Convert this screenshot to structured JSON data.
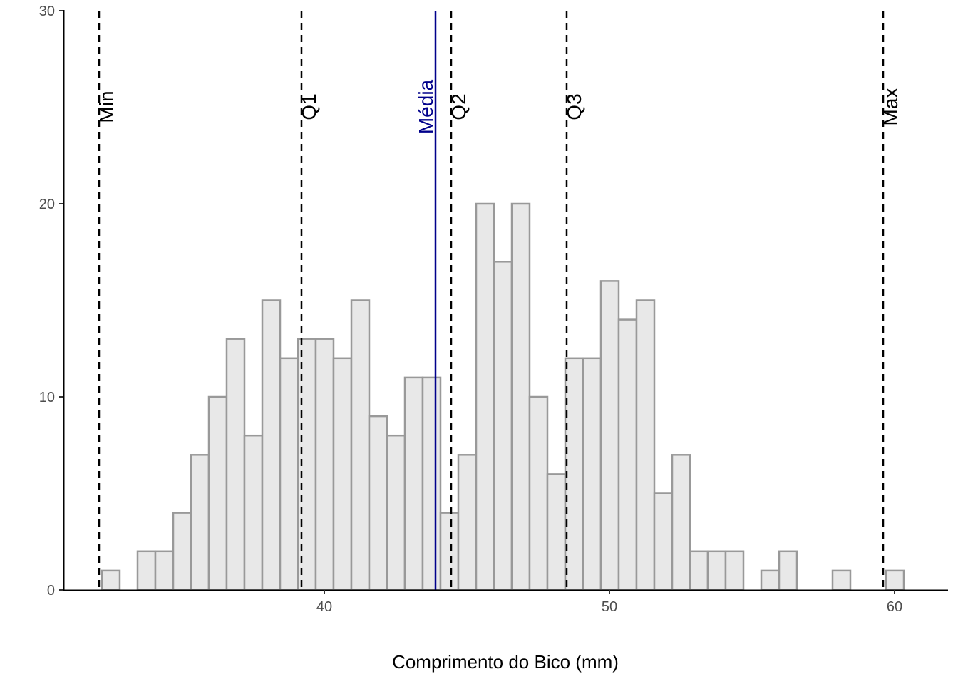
{
  "chart_data": {
    "type": "bar",
    "subtype": "histogram",
    "title": "",
    "xlabel": "Comprimento do Bico (mm)",
    "ylabel": "",
    "xlim": [
      30.85,
      61.85
    ],
    "ylim": [
      0,
      30
    ],
    "x_ticks": [
      40,
      50,
      60
    ],
    "y_ticks": [
      0,
      10,
      20,
      30
    ],
    "grid": false,
    "bin_width": 0.625,
    "bins": [
      {
        "start": 32.2,
        "end": 32.825,
        "count": 1
      },
      {
        "start": 33.45,
        "end": 34.075,
        "count": 2
      },
      {
        "start": 34.075,
        "end": 34.7,
        "count": 2
      },
      {
        "start": 34.7,
        "end": 35.325,
        "count": 4
      },
      {
        "start": 35.325,
        "end": 35.95,
        "count": 7
      },
      {
        "start": 35.95,
        "end": 36.575,
        "count": 10
      },
      {
        "start": 36.575,
        "end": 37.2,
        "count": 13
      },
      {
        "start": 37.2,
        "end": 37.825,
        "count": 8
      },
      {
        "start": 37.825,
        "end": 38.45,
        "count": 15
      },
      {
        "start": 38.45,
        "end": 39.075,
        "count": 12
      },
      {
        "start": 39.075,
        "end": 39.7,
        "count": 13
      },
      {
        "start": 39.7,
        "end": 40.325,
        "count": 13
      },
      {
        "start": 40.325,
        "end": 40.95,
        "count": 12
      },
      {
        "start": 40.95,
        "end": 41.575,
        "count": 15
      },
      {
        "start": 41.575,
        "end": 42.2,
        "count": 9
      },
      {
        "start": 42.2,
        "end": 42.825,
        "count": 8
      },
      {
        "start": 42.825,
        "end": 43.45,
        "count": 11
      },
      {
        "start": 43.45,
        "end": 44.075,
        "count": 11
      },
      {
        "start": 44.075,
        "end": 44.7,
        "count": 4
      },
      {
        "start": 44.7,
        "end": 45.325,
        "count": 7
      },
      {
        "start": 45.325,
        "end": 45.95,
        "count": 20
      },
      {
        "start": 45.95,
        "end": 46.575,
        "count": 17
      },
      {
        "start": 46.575,
        "end": 47.2,
        "count": 20
      },
      {
        "start": 47.2,
        "end": 47.825,
        "count": 10
      },
      {
        "start": 47.825,
        "end": 48.45,
        "count": 6
      },
      {
        "start": 48.45,
        "end": 49.075,
        "count": 12
      },
      {
        "start": 49.075,
        "end": 49.7,
        "count": 12
      },
      {
        "start": 49.7,
        "end": 50.325,
        "count": 16
      },
      {
        "start": 50.325,
        "end": 50.95,
        "count": 14
      },
      {
        "start": 50.95,
        "end": 51.575,
        "count": 15
      },
      {
        "start": 51.575,
        "end": 52.2,
        "count": 5
      },
      {
        "start": 52.2,
        "end": 52.825,
        "count": 7
      },
      {
        "start": 52.825,
        "end": 53.45,
        "count": 2
      },
      {
        "start": 53.45,
        "end": 54.075,
        "count": 2
      },
      {
        "start": 54.075,
        "end": 54.7,
        "count": 2
      },
      {
        "start": 55.325,
        "end": 55.95,
        "count": 1
      },
      {
        "start": 55.95,
        "end": 56.575,
        "count": 2
      },
      {
        "start": 57.825,
        "end": 58.45,
        "count": 1
      },
      {
        "start": 59.7,
        "end": 60.325,
        "count": 1
      }
    ],
    "reference_lines": [
      {
        "label": "Min",
        "x": 32.1,
        "style": "dashed",
        "color": "#000000"
      },
      {
        "label": "Q1",
        "x": 39.2,
        "style": "dashed",
        "color": "#000000"
      },
      {
        "label": "Média",
        "x": 43.9,
        "style": "solid",
        "color": "#00008b"
      },
      {
        "label": "Q2",
        "x": 44.45,
        "style": "dashed",
        "color": "#000000"
      },
      {
        "label": "Q3",
        "x": 48.5,
        "style": "dashed",
        "color": "#000000"
      },
      {
        "label": "Max",
        "x": 59.6,
        "style": "dashed",
        "color": "#000000"
      }
    ],
    "bar_fill": "#e8e8e8",
    "bar_stroke": "#999999"
  }
}
